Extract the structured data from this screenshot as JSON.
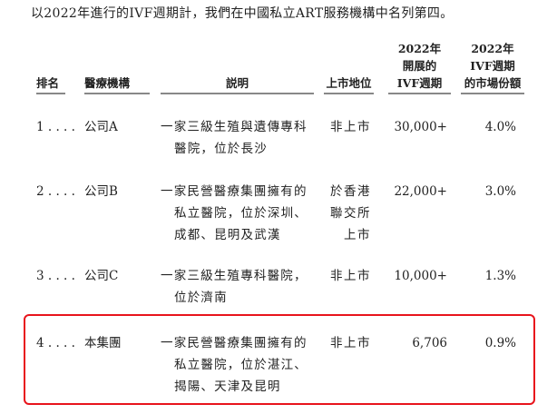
{
  "intro": "以2022年進行的IVF週期計，我們在中國私立ART服務機構中名列第四。",
  "headers": {
    "rank": [
      "排名"
    ],
    "institution": [
      "醫療機構"
    ],
    "description": [
      "説明"
    ],
    "listing": [
      "上市地位"
    ],
    "cycles": [
      "2022年",
      "開展的",
      "IVF週期"
    ],
    "share": [
      "2022年",
      "IVF週期",
      "的市場份額"
    ]
  },
  "rows": [
    {
      "rank": "1 . . . .",
      "institution": "公司A",
      "description": [
        "一家三級生殖與遺傳專科",
        "醫院，位於長沙"
      ],
      "listing": [
        "非上市"
      ],
      "cycles": "30,000+",
      "share": "4.0%"
    },
    {
      "rank": "2 . . . .",
      "institution": "公司B",
      "description": [
        "一家民營醫療集團擁有的",
        "私立醫院，位於深圳、",
        "成都、昆明及武漢"
      ],
      "listing": [
        "於香港",
        "聯交所",
        "上市"
      ],
      "cycles": "22,000+",
      "share": "3.0%"
    },
    {
      "rank": "3 . . . .",
      "institution": "公司C",
      "description": [
        "一家三級生殖專科醫院，",
        "位於濟南"
      ],
      "listing": [
        "非上市"
      ],
      "cycles": "10,000+",
      "share": "1.3%"
    },
    {
      "rank": "4 . . . .",
      "institution": "本集團",
      "description": [
        "一家民營醫療集團擁有的",
        "私立醫院，位於湛江、",
        "揭陽、天津及昆明"
      ],
      "listing": [
        "非上市"
      ],
      "cycles": "6,706",
      "share": "0.9%"
    }
  ],
  "highlight_color": "#e8141c"
}
